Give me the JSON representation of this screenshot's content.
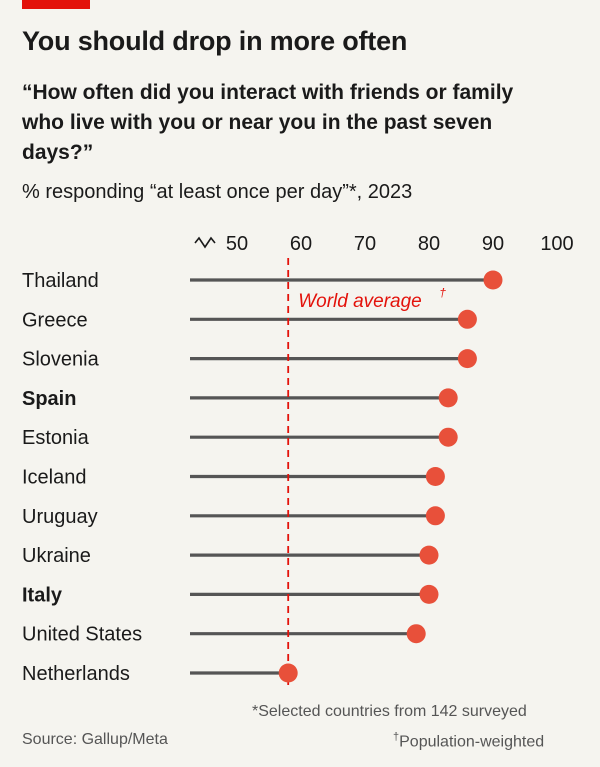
{
  "header": {
    "title": "You should drop in more often",
    "subtitle": "“How often did you interact with friends or family who live with you or near you in the past seven days?”",
    "unit": "% responding “at least once per day”*, 2023"
  },
  "chart_data": {
    "type": "dot-plot",
    "categories": [
      "Thailand",
      "Greece",
      "Slovenia",
      "Spain",
      "Estonia",
      "Iceland",
      "Uruguay",
      "Ukraine",
      "Italy",
      "United States",
      "Netherlands"
    ],
    "bold_categories": [
      "Spain",
      "Italy"
    ],
    "values": [
      90,
      86,
      86,
      83,
      83,
      81,
      81,
      80,
      80,
      78,
      58
    ],
    "x_ticks": [
      "50",
      "60",
      "70",
      "80",
      "90",
      "100"
    ],
    "x_tick_values": [
      50,
      60,
      70,
      80,
      90,
      100
    ],
    "xlim": [
      43,
      100
    ],
    "axis_break": true,
    "reference_line": {
      "value": 58,
      "label": "World average",
      "label_mark": "†"
    },
    "colors": {
      "dot": "#e8503a",
      "reference": "#e3120b",
      "stem": "#555555",
      "accent": "#e3120b"
    }
  },
  "footer": {
    "note": "*Selected countries from 142 surveyed",
    "source": "Source: Gallup/Meta",
    "note2_mark": "†",
    "note2": "Population-weighted"
  }
}
